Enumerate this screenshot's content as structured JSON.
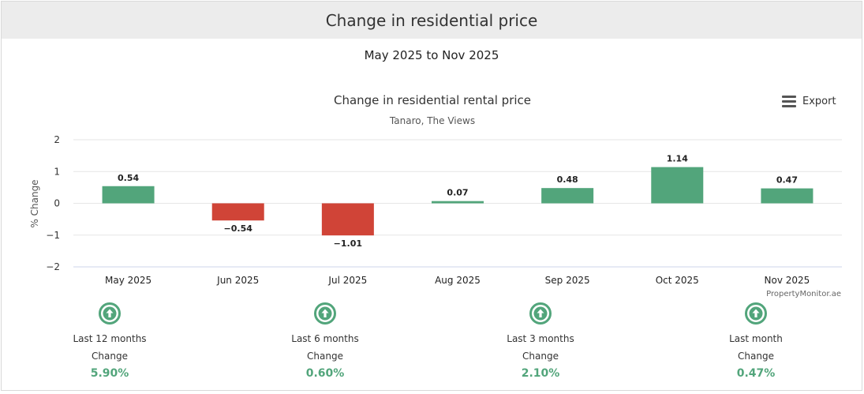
{
  "header": {
    "title": "Change in residential price"
  },
  "date_range": "May 2025 to Nov 2025",
  "export_label": "Export",
  "colors": {
    "positive": "#52a57b",
    "negative": "#d04437"
  },
  "chart_data": {
    "type": "bar",
    "title": "Change in residential rental price",
    "subtitle": "Tanaro, The Views",
    "ylabel": "% Change",
    "xlabel": "",
    "credit": "PropertyMonitor.ae",
    "categories": [
      "May 2025",
      "Jun 2025",
      "Jul 2025",
      "Aug 2025",
      "Sep 2025",
      "Oct 2025",
      "Nov 2025"
    ],
    "values": [
      0.54,
      -0.54,
      -1.01,
      0.07,
      0.48,
      1.14,
      0.47
    ],
    "value_labels": [
      "0.54",
      "−0.54",
      "−1.01",
      "0.07",
      "0.48",
      "1.14",
      "0.47"
    ],
    "ylim": [
      -2,
      2
    ],
    "yticks": [
      2,
      1,
      0,
      -1,
      -2
    ],
    "ytick_labels": [
      "2",
      "1",
      "0",
      "−1",
      "−2"
    ],
    "grid": true,
    "legend": "none"
  },
  "stats": [
    {
      "period": "Last 12 months",
      "label": "Change",
      "value": "5.90%",
      "icon": "arrow-up-circle-icon"
    },
    {
      "period": "Last 6 months",
      "label": "Change",
      "value": "0.60%",
      "icon": "arrow-up-circle-icon"
    },
    {
      "period": "Last 3 months",
      "label": "Change",
      "value": "2.10%",
      "icon": "arrow-up-circle-icon"
    },
    {
      "period": "Last month",
      "label": "Change",
      "value": "0.47%",
      "icon": "arrow-up-circle-icon"
    }
  ]
}
